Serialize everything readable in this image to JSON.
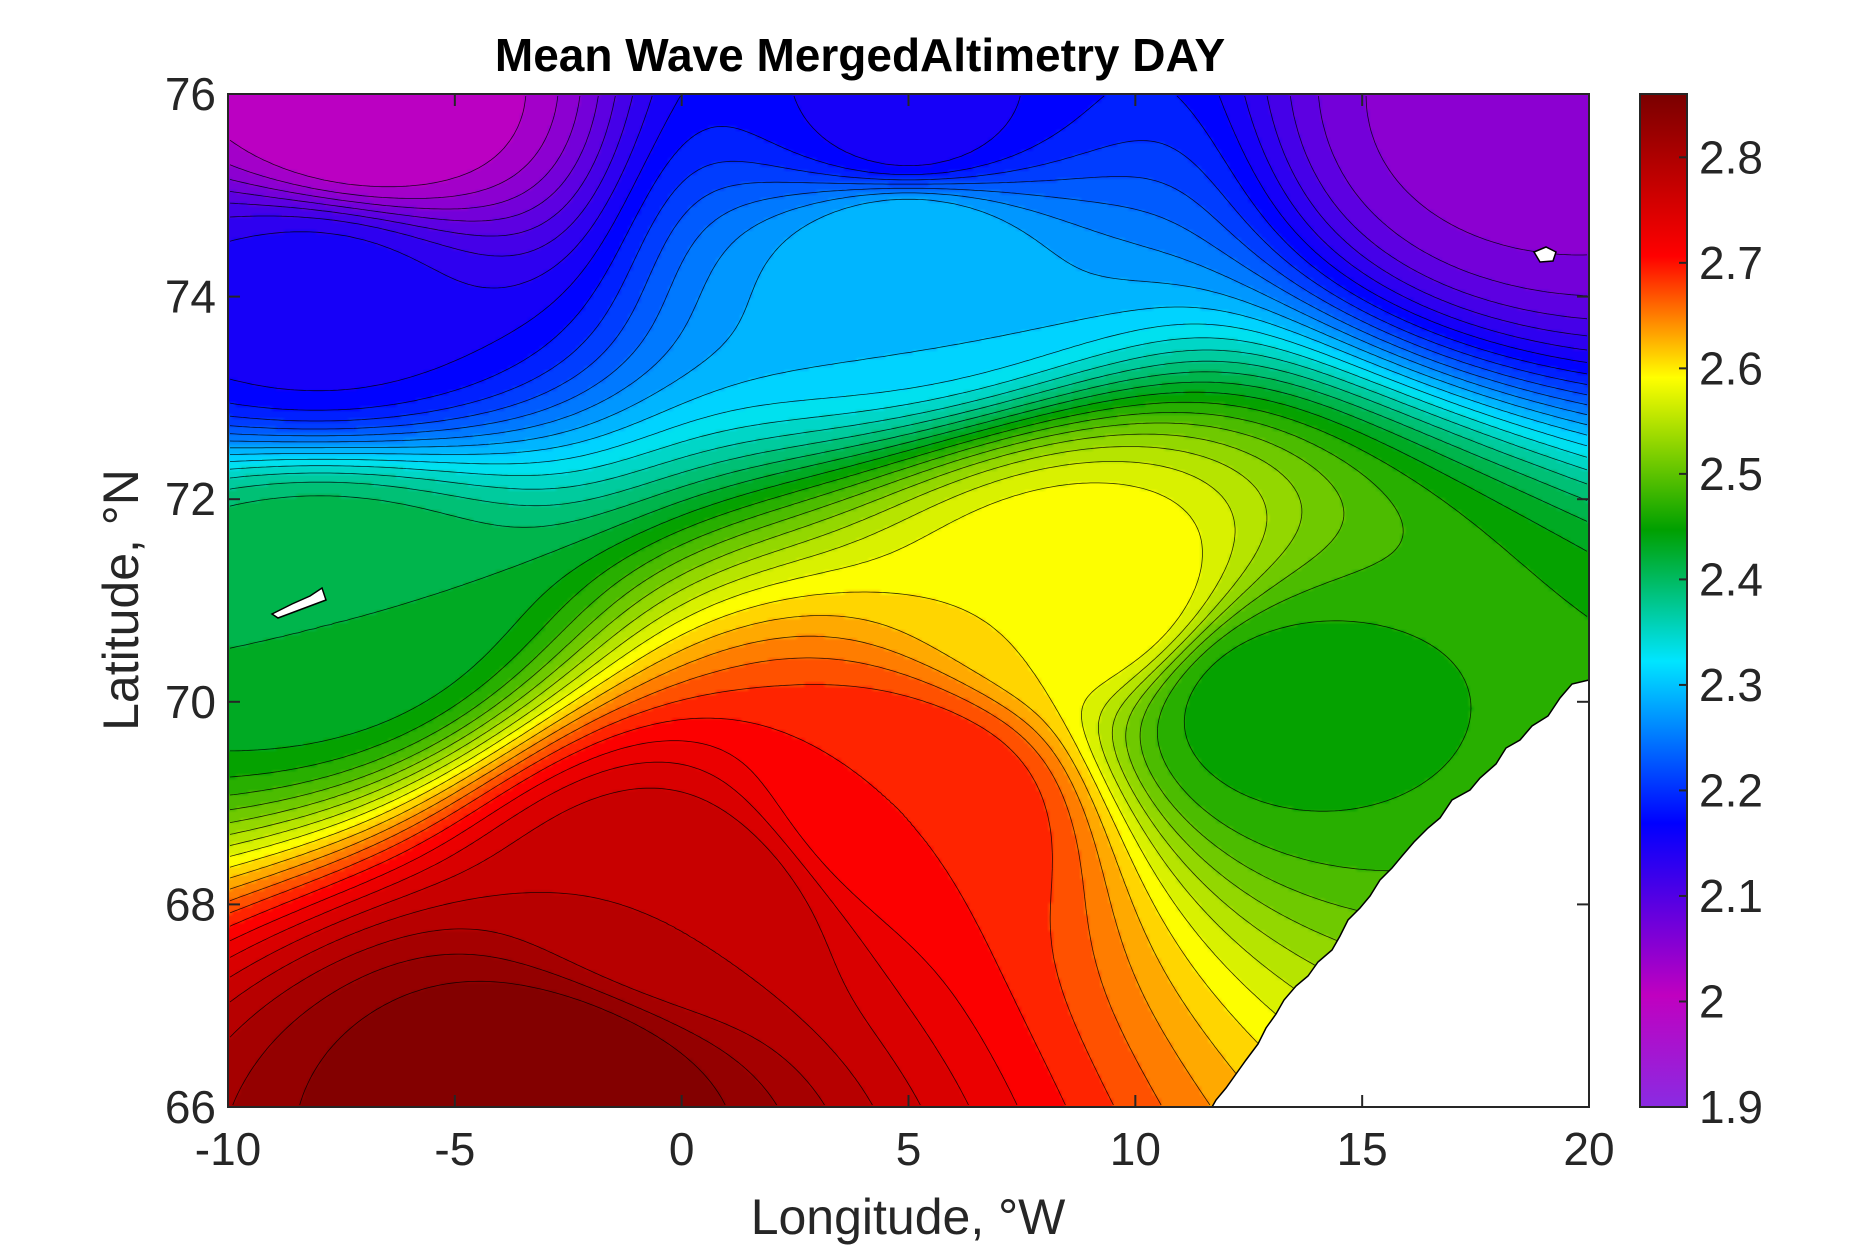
{
  "chart_data": {
    "type": "contour",
    "title": "Mean Wave MergedAltimetry DAY",
    "xlabel": "Longitude, °W",
    "ylabel": "Latitude, °N",
    "xlim": [
      -10,
      20
    ],
    "ylim": [
      66,
      76
    ],
    "xticks": [
      -10,
      -5,
      0,
      5,
      10,
      15,
      20
    ],
    "yticks": [
      66,
      68,
      70,
      72,
      74,
      76
    ],
    "xtick_labels": [
      "-10",
      "-5",
      "0",
      "5",
      "10",
      "15",
      "20"
    ],
    "ytick_labels": [
      "66",
      "68",
      "70",
      "72",
      "74",
      "76"
    ],
    "colorbar": {
      "range": [
        1.9,
        2.86
      ],
      "ticks": [
        1.9,
        2.0,
        2.1,
        2.2,
        2.3,
        2.4,
        2.5,
        2.6,
        2.7,
        2.8
      ],
      "tick_labels": [
        "1.9",
        "2",
        "2.1",
        "2.2",
        "2.3",
        "2.4",
        "2.5",
        "2.6",
        "2.7",
        "2.8"
      ],
      "colormap": [
        "#8a2be2",
        "#c000c0",
        "#0000ff",
        "#00e5ff",
        "#00a000",
        "#ffff00",
        "#ff0000",
        "#7a0000"
      ]
    },
    "field_samples": [
      {
        "lon": -3,
        "lat": 66.2,
        "value": 2.86
      },
      {
        "lon": 0,
        "lat": 68,
        "value": 2.78
      },
      {
        "lon": 5,
        "lat": 69,
        "value": 2.7
      },
      {
        "lon": 9,
        "lat": 71,
        "value": 2.6
      },
      {
        "lon": 13,
        "lat": 70,
        "value": 2.45
      },
      {
        "lon": -8,
        "lat": 71,
        "value": 2.42
      },
      {
        "lon": 5,
        "lat": 74.5,
        "value": 2.3
      },
      {
        "lon": 5,
        "lat": 75.7,
        "value": 2.15
      },
      {
        "lon": -8,
        "lat": 74,
        "value": 2.15
      },
      {
        "lon": -7,
        "lat": 75.8,
        "value": 2.0
      },
      {
        "lon": 19,
        "lat": 75.8,
        "value": 2.05
      }
    ],
    "grid": false,
    "land_color": "#ffffff"
  }
}
